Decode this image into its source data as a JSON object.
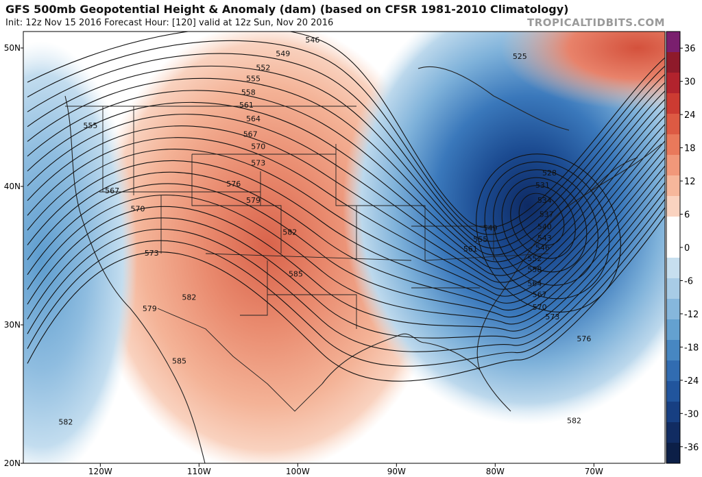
{
  "title": "GFS 500mb Geopotential Height & Anomaly (dam) (based on CFSR 1981-2010 Climatology)",
  "subtitle": "Init: 12z Nov 15 2016   Forecast Hour: [120]   valid at 12z Sun, Nov 20 2016",
  "brand": "TROPICALTIDBITS.COM",
  "lat_labels": [
    "50N",
    "40N",
    "30N",
    "20N"
  ],
  "lon_labels": [
    "120W",
    "110W",
    "100W",
    "90W",
    "80W",
    "70W"
  ],
  "colorbar": {
    "labels": [
      "36",
      "30",
      "24",
      "18",
      "12",
      "6",
      "0",
      "-6",
      "-12",
      "-18",
      "-24",
      "-30",
      "-36"
    ],
    "colors": [
      "#7a1f6e",
      "#8e1a2a",
      "#b2232d",
      "#cc3b32",
      "#dd5a43",
      "#e9795b",
      "#f1987a",
      "#f6b79b",
      "#fad3c0",
      "#ffffff",
      "#ffffff",
      "#c7dfef",
      "#a8cce6",
      "#86b7dc",
      "#64a1d0",
      "#4787c2",
      "#316cb1",
      "#21559d",
      "#173f82",
      "#112c62",
      "#0c1f47"
    ]
  },
  "contour_labels": [
    {
      "text": "546",
      "lon": -98.5,
      "lat": 50.4
    },
    {
      "text": "549",
      "lon": -101.5,
      "lat": 49.4
    },
    {
      "text": "552",
      "lon": -103.5,
      "lat": 48.4
    },
    {
      "text": "555",
      "lon": -104.5,
      "lat": 47.6
    },
    {
      "text": "558",
      "lon": -105.0,
      "lat": 46.6
    },
    {
      "text": "561",
      "lon": -105.2,
      "lat": 45.7
    },
    {
      "text": "564",
      "lon": -104.5,
      "lat": 44.7
    },
    {
      "text": "567",
      "lon": -104.8,
      "lat": 43.6
    },
    {
      "text": "570",
      "lon": -104.0,
      "lat": 42.7
    },
    {
      "text": "573",
      "lon": -104.0,
      "lat": 41.5
    },
    {
      "text": "576",
      "lon": -106.5,
      "lat": 40.0
    },
    {
      "text": "579",
      "lon": -104.5,
      "lat": 38.8
    },
    {
      "text": "582",
      "lon": -100.8,
      "lat": 36.5
    },
    {
      "text": "585",
      "lon": -100.2,
      "lat": 33.5
    },
    {
      "text": "555",
      "lon": -121.0,
      "lat": 44.2
    },
    {
      "text": "567",
      "lon": -118.8,
      "lat": 39.5
    },
    {
      "text": "570",
      "lon": -116.2,
      "lat": 38.2
    },
    {
      "text": "573",
      "lon": -114.8,
      "lat": 35.0
    },
    {
      "text": "582",
      "lon": -111.0,
      "lat": 31.8
    },
    {
      "text": "579",
      "lon": -115.0,
      "lat": 31.0
    },
    {
      "text": "585",
      "lon": -112.0,
      "lat": 27.2
    },
    {
      "text": "582",
      "lon": -123.5,
      "lat": 22.8
    },
    {
      "text": "525",
      "lon": -77.5,
      "lat": 49.2
    },
    {
      "text": "528",
      "lon": -74.5,
      "lat": 40.8
    },
    {
      "text": "531",
      "lon": -75.2,
      "lat": 39.9
    },
    {
      "text": "534",
      "lon": -75.0,
      "lat": 38.8
    },
    {
      "text": "537",
      "lon": -74.8,
      "lat": 37.8
    },
    {
      "text": "540",
      "lon": -75.0,
      "lat": 36.9
    },
    {
      "text": "543",
      "lon": -75.0,
      "lat": 36.1
    },
    {
      "text": "546",
      "lon": -75.2,
      "lat": 35.4
    },
    {
      "text": "549",
      "lon": -80.5,
      "lat": 36.8
    },
    {
      "text": "555",
      "lon": -81.5,
      "lat": 36.0
    },
    {
      "text": "561",
      "lon": -82.5,
      "lat": 35.3
    },
    {
      "text": "552",
      "lon": -76.0,
      "lat": 34.6
    },
    {
      "text": "558",
      "lon": -76.0,
      "lat": 33.8
    },
    {
      "text": "564",
      "lon": -76.0,
      "lat": 32.8
    },
    {
      "text": "567",
      "lon": -75.5,
      "lat": 32.0
    },
    {
      "text": "570",
      "lon": -75.5,
      "lat": 31.1
    },
    {
      "text": "573",
      "lon": -74.2,
      "lat": 30.4
    },
    {
      "text": "576",
      "lon": -71.0,
      "lat": 28.8
    },
    {
      "text": "582",
      "lon": -72.0,
      "lat": 22.9
    }
  ]
}
